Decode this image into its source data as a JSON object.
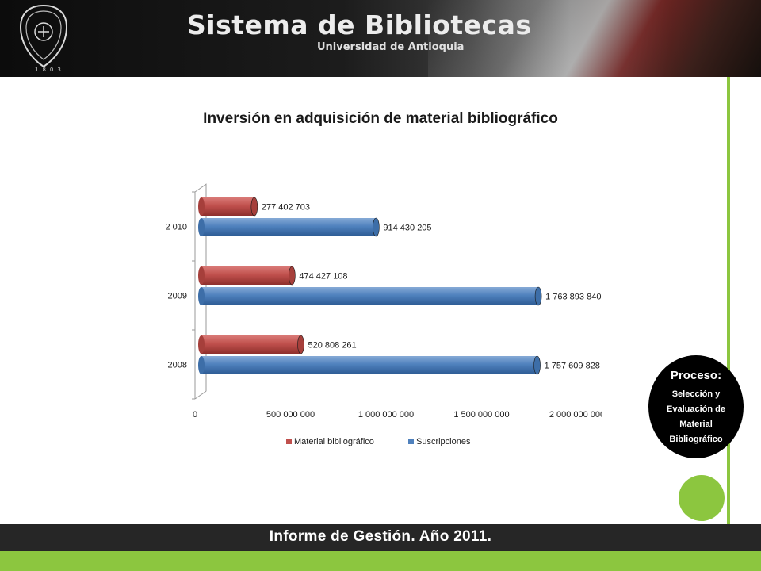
{
  "header": {
    "title": "Sistema de Bibliotecas",
    "subtitle": "Universidad de Antioquia",
    "crest_year": "1803"
  },
  "process": {
    "title": "Proceso:",
    "lines": [
      "Selección y",
      "Evaluación de",
      "Material",
      "Bibliográfico"
    ]
  },
  "footer": {
    "text": "Informe de Gestión. Año 2011."
  },
  "colors": {
    "accent_green": "#8cc63f",
    "series_red": "#c0504d",
    "series_blue": "#4f81bd"
  },
  "chart_data": {
    "type": "bar",
    "orientation": "horizontal",
    "title": "Inversión en adquisición de material bibliográfico",
    "categories": [
      "2008",
      "2009",
      "2 010"
    ],
    "series": [
      {
        "name": "Material bibliográfico",
        "color": "#c0504d",
        "values": [
          520808261,
          474427108,
          277402703
        ],
        "labels": [
          "520 808 261",
          "474 427 108",
          "277 402 703"
        ]
      },
      {
        "name": "Suscripciones",
        "color": "#4f81bd",
        "values": [
          1757609828,
          1763893840,
          914430205
        ],
        "labels": [
          "1 757 609 828",
          "1 763 893 840",
          "914 430 205"
        ]
      }
    ],
    "xlim": [
      0,
      2000000000
    ],
    "x_ticks": [
      0,
      500000000,
      1000000000,
      1500000000,
      2000000000
    ],
    "x_tick_labels": [
      "0",
      "500 000 000",
      "1 000 000 000",
      "1 500 000 000",
      "2 000 000 000"
    ],
    "grid": false,
    "legend_position": "bottom"
  }
}
